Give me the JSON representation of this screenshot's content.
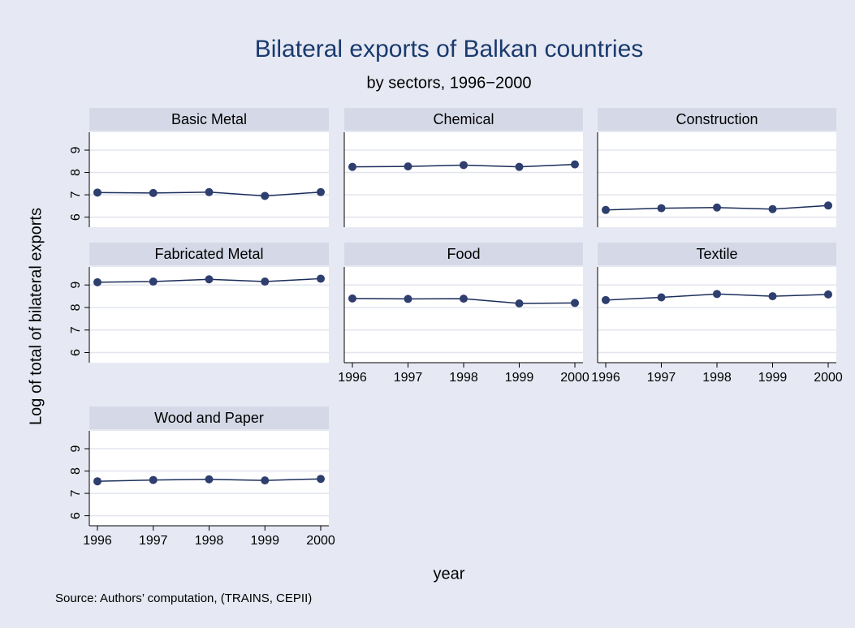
{
  "title": "Bilateral exports of Balkan countries",
  "subtitle": "by sectors, 1996−2000",
  "ylabel": "Log of total of bilateral exports",
  "xlabel": "year",
  "note": "Source: Authors’ computation, (TRAINS, CEPII)",
  "chart_data": [
    {
      "type": "line",
      "title": "Basic Metal",
      "x": [
        1996,
        1997,
        1998,
        1999,
        2000
      ],
      "values": [
        7.1,
        7.08,
        7.12,
        6.95,
        7.12
      ],
      "color": "#1a2d5a",
      "xlim": [
        1996,
        2000
      ],
      "ylim": [
        5.55,
        9.8
      ],
      "yticks": [
        6,
        7,
        8,
        9
      ],
      "grid": true
    },
    {
      "type": "line",
      "title": "Chemical",
      "x": [
        1996,
        1997,
        1998,
        1999,
        2000
      ],
      "values": [
        8.25,
        8.27,
        8.33,
        8.25,
        8.36
      ],
      "color": "#1a2d5a",
      "xlim": [
        1996,
        2000
      ],
      "ylim": [
        5.55,
        9.8
      ],
      "yticks": [
        6,
        7,
        8,
        9
      ],
      "grid": true
    },
    {
      "type": "line",
      "title": "Construction",
      "x": [
        1996,
        1997,
        1998,
        1999,
        2000
      ],
      "values": [
        6.32,
        6.4,
        6.43,
        6.36,
        6.52
      ],
      "color": "#1a2d5a",
      "xlim": [
        1996,
        2000
      ],
      "ylim": [
        5.55,
        9.8
      ],
      "yticks": [
        6,
        7,
        8,
        9
      ],
      "grid": true
    },
    {
      "type": "line",
      "title": "Fabricated Metal",
      "x": [
        1996,
        1997,
        1998,
        1999,
        2000
      ],
      "values": [
        9.12,
        9.15,
        9.25,
        9.15,
        9.28
      ],
      "color": "#1a2d5a",
      "xlim": [
        1996,
        2000
      ],
      "ylim": [
        5.55,
        9.8
      ],
      "yticks": [
        6,
        7,
        8,
        9
      ],
      "grid": true
    },
    {
      "type": "line",
      "title": "Food",
      "x": [
        1996,
        1997,
        1998,
        1999,
        2000
      ],
      "values": [
        8.4,
        8.38,
        8.39,
        8.18,
        8.2
      ],
      "color": "#1a2d5a",
      "xlim": [
        1996,
        2000
      ],
      "ylim": [
        5.55,
        9.8
      ],
      "yticks": [
        6,
        7,
        8,
        9
      ],
      "xticks": [
        1996,
        1997,
        1998,
        1999,
        2000
      ],
      "grid": true
    },
    {
      "type": "line",
      "title": "Textile",
      "x": [
        1996,
        1997,
        1998,
        1999,
        2000
      ],
      "values": [
        8.33,
        8.45,
        8.6,
        8.5,
        8.58
      ],
      "color": "#1a2d5a",
      "xlim": [
        1996,
        2000
      ],
      "ylim": [
        5.55,
        9.8
      ],
      "yticks": [
        6,
        7,
        8,
        9
      ],
      "xticks": [
        1996,
        1997,
        1998,
        1999,
        2000
      ],
      "grid": true
    },
    {
      "type": "line",
      "title": "Wood and Paper",
      "x": [
        1996,
        1997,
        1998,
        1999,
        2000
      ],
      "values": [
        7.54,
        7.6,
        7.63,
        7.58,
        7.65
      ],
      "color": "#1a2d5a",
      "xlim": [
        1996,
        2000
      ],
      "ylim": [
        5.55,
        9.8
      ],
      "yticks": [
        6,
        7,
        8,
        9
      ],
      "xticks": [
        1996,
        1997,
        1998,
        1999,
        2000
      ],
      "grid": true
    }
  ]
}
